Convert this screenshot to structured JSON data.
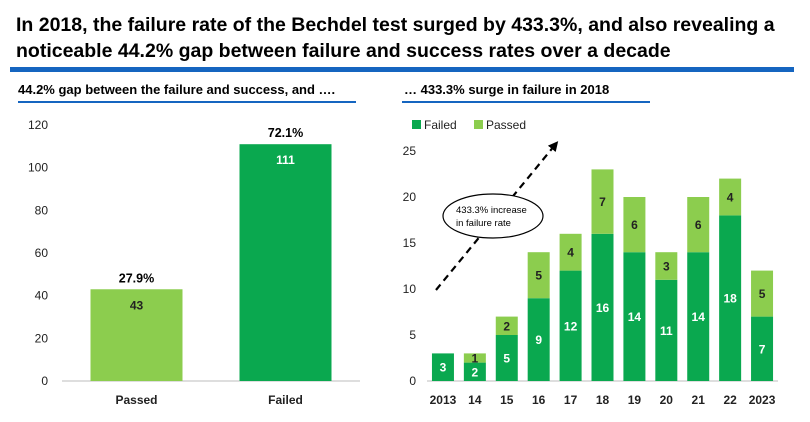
{
  "title": "In 2018, the failure rate of the Bechdel test surged by 433.3%, and also revealing a noticeable 44.2% gap between failure and success rates over a decade",
  "colors": {
    "accent": "#1565c0",
    "failed": "#0aa84f",
    "passed": "#8ccd4e"
  },
  "chart_data": [
    {
      "type": "bar",
      "title": "44.2% gap between the failure and success, and ….",
      "categories": [
        "Passed",
        "Failed"
      ],
      "values": [
        43,
        111
      ],
      "percent_labels": [
        "27.9%",
        "72.1%"
      ],
      "bar_colors": [
        "#8ccd4e",
        "#0aa84f"
      ],
      "ylim": [
        0,
        120
      ],
      "yticks": [
        0,
        20,
        40,
        60,
        80,
        100,
        120
      ],
      "grid": false
    },
    {
      "type": "bar",
      "stacked": true,
      "title": "… 433.3% surge in failure in 2018",
      "categories": [
        "2013",
        "14",
        "15",
        "16",
        "17",
        "18",
        "19",
        "20",
        "21",
        "22",
        "2023"
      ],
      "series": [
        {
          "name": "Failed",
          "color": "#0aa84f",
          "values": [
            3,
            2,
            5,
            9,
            12,
            16,
            14,
            11,
            14,
            18,
            7
          ]
        },
        {
          "name": "Passed",
          "color": "#8ccd4e",
          "values": [
            0,
            1,
            2,
            5,
            4,
            7,
            6,
            3,
            6,
            4,
            5
          ]
        }
      ],
      "ylim": [
        0,
        25
      ],
      "yticks": [
        0,
        5,
        10,
        15,
        20,
        25
      ],
      "legend": "top-left",
      "grid": false,
      "annotation": "433.3% increase in failure rate"
    }
  ]
}
